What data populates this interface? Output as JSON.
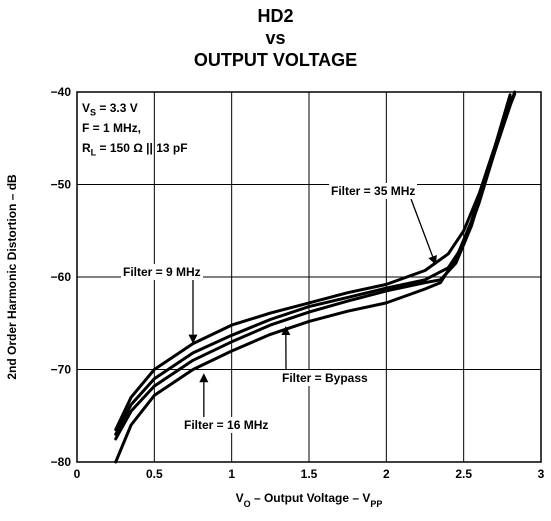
{
  "chart_data": {
    "type": "line",
    "title_lines": [
      "HD2",
      "vs",
      "OUTPUT VOLTAGE"
    ],
    "xlabel": {
      "main": "V",
      "sub1": "O",
      "mid": " – Output Voltage – V",
      "sub2": "PP"
    },
    "ylabel": "2nd Order Harmonic Distortion – dB",
    "xlim": [
      0,
      3
    ],
    "ylim": [
      -80,
      -40
    ],
    "x_ticks": [
      0,
      0.5,
      1,
      1.5,
      2,
      2.5,
      3
    ],
    "x_tick_labels": [
      "0",
      "0.5",
      "1",
      "1.5",
      "2",
      "2.5",
      "3"
    ],
    "y_ticks": [
      -80,
      -70,
      -60,
      -50,
      -40
    ],
    "y_tick_labels": [
      "−80",
      "−70",
      "−60",
      "−50",
      "−40"
    ],
    "grid": true,
    "conditions": {
      "vs": {
        "main": "V",
        "sub": "S",
        "rest": " = 3.3 V"
      },
      "f": "F = 1 MHz,",
      "rl": {
        "main": "R",
        "sub": "L",
        "rest": " = 150 Ω || 13 pF"
      }
    },
    "series": [
      {
        "name": "Filter = 9 MHz",
        "x": [
          0.25,
          0.35,
          0.5,
          0.75,
          1.0,
          1.25,
          1.5,
          1.75,
          2.0,
          2.25,
          2.4,
          2.5,
          2.6,
          2.7,
          2.8
        ],
        "y": [
          -76.5,
          -73.0,
          -70.0,
          -67.2,
          -65.2,
          -63.9,
          -62.8,
          -61.7,
          -60.8,
          -59.3,
          -57.5,
          -55.0,
          -51.0,
          -46.0,
          -40.3
        ]
      },
      {
        "name": "Filter = Bypass",
        "x": [
          0.25,
          0.35,
          0.5,
          0.75,
          1.0,
          1.25,
          1.5,
          1.75,
          2.0,
          2.25,
          2.4,
          2.5,
          2.6,
          2.7,
          2.8
        ],
        "y": [
          -77.0,
          -73.8,
          -71.0,
          -68.2,
          -66.3,
          -64.6,
          -63.2,
          -62.2,
          -61.2,
          -60.3,
          -59.0,
          -56.5,
          -52.0,
          -46.5,
          -40.5
        ]
      },
      {
        "name": "Filter = 35 MHz",
        "x": [
          0.25,
          0.35,
          0.5,
          0.75,
          1.0,
          1.25,
          1.5,
          1.75,
          2.0,
          2.25,
          2.35,
          2.45,
          2.55,
          2.65,
          2.75,
          2.83
        ],
        "y": [
          -77.5,
          -74.5,
          -71.8,
          -69.0,
          -67.0,
          -65.2,
          -63.8,
          -62.6,
          -61.5,
          -60.6,
          -60.3,
          -58.5,
          -54.5,
          -49.0,
          -44.0,
          -40.0
        ]
      },
      {
        "name": "Filter = 16 MHz",
        "x": [
          0.25,
          0.35,
          0.5,
          0.75,
          1.0,
          1.25,
          1.5,
          1.75,
          2.0,
          2.25,
          2.35,
          2.45,
          2.55,
          2.65,
          2.75,
          2.83
        ],
        "y": [
          -80.0,
          -76.0,
          -72.8,
          -70.0,
          -68.0,
          -66.2,
          -64.8,
          -63.7,
          -62.8,
          -61.3,
          -60.6,
          -58.0,
          -54.0,
          -48.5,
          -43.5,
          -40.2
        ]
      }
    ],
    "annotations": [
      {
        "text": "Filter = 9 MHz",
        "target_x": 0.75,
        "target_y": -67.2
      },
      {
        "text": "Filter = 35 MHz",
        "target_x": 2.32,
        "target_y": -58.7
      },
      {
        "text": "Filter = Bypass",
        "target_x": 1.35,
        "target_y": -65.3
      },
      {
        "text": "Filter = 16 MHz",
        "target_x": 0.82,
        "target_y": -70.4
      }
    ]
  }
}
